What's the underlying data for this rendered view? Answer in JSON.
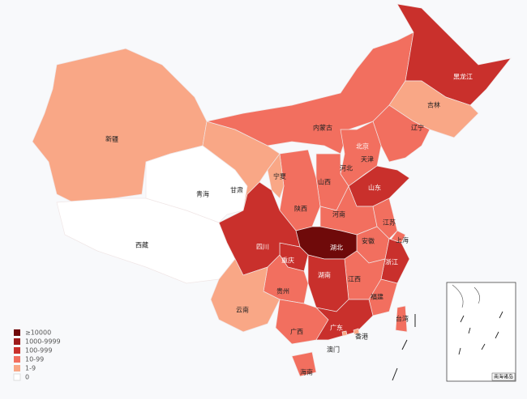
{
  "legend": [
    {
      "label": "≥10000",
      "color": "#6f0a0a"
    },
    {
      "label": "1000-9999",
      "color": "#9e1c1c"
    },
    {
      "label": "100-999",
      "color": "#c9302c"
    },
    {
      "label": "10-99",
      "color": "#f26f5f"
    },
    {
      "label": "1-9",
      "color": "#f9a786"
    },
    {
      "label": "0",
      "color": "#ffffff"
    }
  ],
  "regions": [
    {
      "name": "新疆",
      "level": 4
    },
    {
      "name": "西藏",
      "level": 5
    },
    {
      "name": "青海",
      "level": 5
    },
    {
      "name": "甘肃",
      "level": 4
    },
    {
      "name": "内蒙古",
      "level": 3
    },
    {
      "name": "黑龙江",
      "level": 2
    },
    {
      "name": "吉林",
      "level": 4
    },
    {
      "name": "辽宁",
      "level": 3
    },
    {
      "name": "北京",
      "level": 2
    },
    {
      "name": "天津",
      "level": 3
    },
    {
      "name": "河北",
      "level": 3
    },
    {
      "name": "山西",
      "level": 3
    },
    {
      "name": "陕西",
      "level": 3
    },
    {
      "name": "宁夏",
      "level": 4
    },
    {
      "name": "山东",
      "level": 2
    },
    {
      "name": "河南",
      "level": 3
    },
    {
      "name": "江苏",
      "level": 3
    },
    {
      "name": "上海",
      "level": 3
    },
    {
      "name": "安徽",
      "level": 3
    },
    {
      "name": "湖北",
      "level": 0
    },
    {
      "name": "重庆",
      "level": 2
    },
    {
      "name": "四川",
      "level": 2
    },
    {
      "name": "浙江",
      "level": 2
    },
    {
      "name": "江西",
      "level": 3
    },
    {
      "name": "湖南",
      "level": 2
    },
    {
      "name": "福建",
      "level": 3
    },
    {
      "name": "贵州",
      "level": 3
    },
    {
      "name": "云南",
      "level": 4
    },
    {
      "name": "广西",
      "level": 3
    },
    {
      "name": "广东",
      "level": 2
    },
    {
      "name": "海南",
      "level": 3
    },
    {
      "name": "台湾",
      "level": 3
    },
    {
      "name": "香港",
      "level": 4
    },
    {
      "name": "澳门",
      "level": 4
    }
  ],
  "inset": {
    "label": "南海诸岛"
  }
}
